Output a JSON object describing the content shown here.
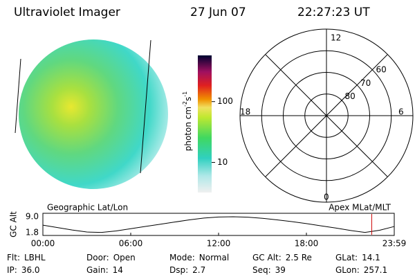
{
  "header": {
    "title": "Ultraviolet Imager",
    "date": "27 Jun 07",
    "time": "22:27:23 UT"
  },
  "colorbar": {
    "label": {
      "text": "photon cm",
      "exp1": "-2",
      "unit2": "s",
      "exp2": "-1"
    },
    "scale": "log",
    "lim": [
      3.2,
      575
    ],
    "ticks": [
      {
        "value": 100,
        "label": "100"
      },
      {
        "value": 10,
        "label": "10"
      }
    ]
  },
  "polar": {
    "hours": {
      "top": "12",
      "left": "18",
      "right": "6",
      "bottom": "0"
    },
    "rlim": [
      90,
      50
    ],
    "circles": [
      80,
      70,
      60
    ]
  },
  "timeline": {
    "ylabel": "GC Alt",
    "left_title": "Geographic Lat/Lon",
    "right_title": "Apex MLat/MLT",
    "ylim": [
      1.8,
      9.0
    ],
    "yticks": [
      {
        "value": 9.0,
        "label": "9.0"
      },
      {
        "value": 1.8,
        "label": "1.8"
      }
    ],
    "xlim": [
      0,
      24
    ],
    "xticks": [
      {
        "value": 0,
        "label": "00:00"
      },
      {
        "value": 6,
        "label": "06:00"
      },
      {
        "value": 12,
        "label": "12:00"
      },
      {
        "value": 18,
        "label": "18:00"
      },
      {
        "value": 24,
        "label": "23:59"
      }
    ],
    "x": [
      0,
      1,
      2,
      3,
      4,
      5,
      6,
      7,
      8,
      9,
      10,
      11,
      12,
      13,
      14,
      15,
      16,
      17,
      18,
      19,
      20,
      21,
      22,
      23,
      24
    ],
    "values": [
      5.2,
      4.1,
      3.0,
      2.1,
      1.9,
      2.6,
      3.6,
      4.6,
      5.6,
      6.6,
      7.6,
      8.4,
      8.9,
      9.0,
      8.8,
      8.3,
      7.6,
      6.8,
      5.9,
      4.9,
      3.9,
      2.8,
      1.9,
      2.9,
      4.6
    ],
    "marker": 22.46,
    "marker_color": "#cc0000"
  },
  "footer": {
    "items": [
      {
        "label": "Flt:",
        "value": "LBHL"
      },
      {
        "label": "Door:",
        "value": "Open"
      },
      {
        "label": "Mode:",
        "value": "Normal"
      },
      {
        "label": "GC Alt:",
        "value": "2.5 Re"
      },
      {
        "label": "GLat:",
        "value": "14.1"
      },
      {
        "label": "IP:",
        "value": "36.0"
      },
      {
        "label": "Gain:",
        "value": "14"
      },
      {
        "label": "Dsp:",
        "value": "2.7"
      },
      {
        "label": "Seq:",
        "value": "39"
      },
      {
        "label": "GLon:",
        "value": "257.1"
      }
    ]
  }
}
